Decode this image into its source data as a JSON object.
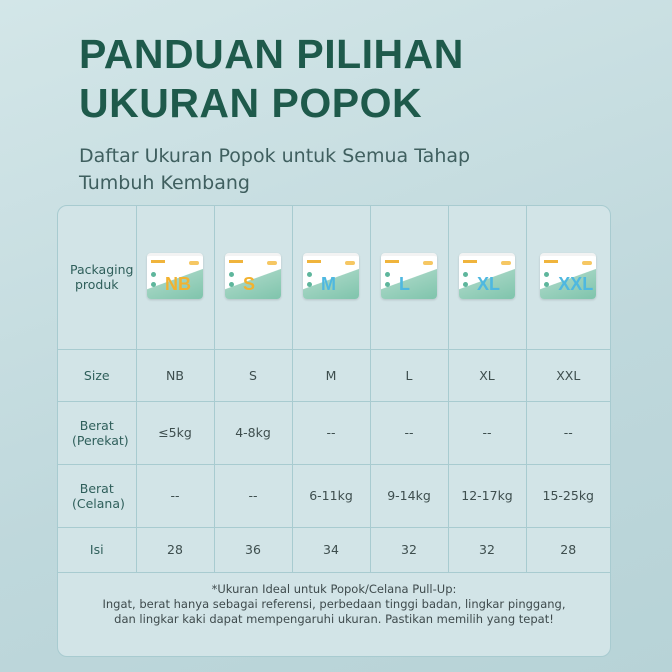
{
  "header": {
    "title_line1": "PANDUAN PILIHAN",
    "title_line2": "UKURAN POPOK",
    "subtitle_line1": "Daftar Ukuran Popok untuk Semua Tahap",
    "subtitle_line2": "Tumbuh Kembang"
  },
  "table": {
    "row_labels": {
      "packaging": "Packaging produk",
      "size": "Size",
      "berat_perekat": "Berat (Perekat)",
      "berat_celana": "Berat (Celana)",
      "isi": "Isi"
    },
    "columns": [
      {
        "size": "NB",
        "perekat": "≤5kg",
        "celana": "--",
        "isi": "28",
        "letter_color": "#f2b230"
      },
      {
        "size": "S",
        "perekat": "4-8kg",
        "celana": "--",
        "isi": "36",
        "letter_color": "#f2b230"
      },
      {
        "size": "M",
        "perekat": "--",
        "celana": "6-11kg",
        "isi": "34",
        "letter_color": "#4fb8e0"
      },
      {
        "size": "L",
        "perekat": "--",
        "celana": "9-14kg",
        "isi": "32",
        "letter_color": "#4fb8e0"
      },
      {
        "size": "XL",
        "perekat": "--",
        "celana": "12-17kg",
        "isi": "32",
        "letter_color": "#4fb8e0"
      },
      {
        "size": "XXL",
        "perekat": "--",
        "celana": "15-25kg",
        "isi": "28",
        "letter_color": "#4fb8e0"
      }
    ]
  },
  "footer": {
    "line1": "*Ukuran Ideal untuk Popok/Celana Pull-Up:",
    "line2": "Ingat, berat hanya sebagai referensi, perbedaan tinggi badan, lingkar pinggang,",
    "line3": "dan lingkar kaki dapat mempengaruhi ukuran. Pastikan memilih yang tepat!"
  }
}
